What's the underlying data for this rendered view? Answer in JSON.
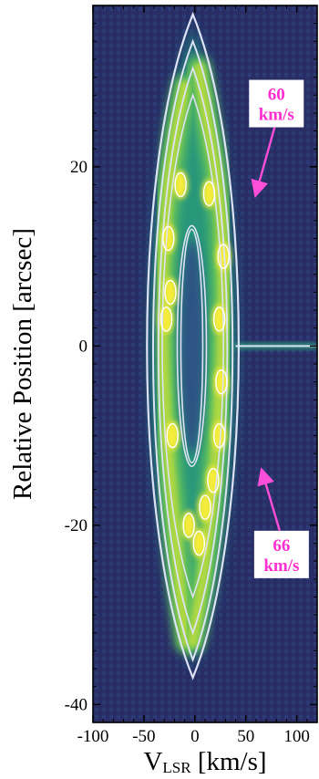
{
  "chart_data": {
    "type": "heatmap",
    "description_kind": "position-velocity diagram with contours",
    "title": "",
    "xlabel": "V",
    "xlabel_subscript": "LSR",
    "xlabel_unit": " [km/s]",
    "ylabel": "Relative Position  [arcsec]",
    "xlim": [
      -100,
      120
    ],
    "ylim": [
      -42,
      38
    ],
    "xticks": [
      -100,
      -50,
      0,
      50,
      100
    ],
    "xtick_labels": [
      "-100",
      "-50",
      "0",
      "50",
      "100"
    ],
    "yticks": [
      -40,
      -20,
      0,
      20
    ],
    "ytick_labels": [
      "-40",
      "-20",
      "0",
      "20"
    ],
    "grid": false,
    "colormap": [
      "#2a1d5c",
      "#2e4d86",
      "#23797f",
      "#2aa07a",
      "#64c35a",
      "#c9df3a",
      "#f5ec3a"
    ],
    "contour_color": "#dde3f4",
    "emission_ridges": [
      {
        "name": "left",
        "points": [
          [
            -8,
            -33
          ],
          [
            -14,
            -28
          ],
          [
            -20,
            -20
          ],
          [
            -26,
            -12
          ],
          [
            -30,
            -4
          ],
          [
            -32,
            4
          ],
          [
            -30,
            12
          ],
          [
            -26,
            18
          ],
          [
            -18,
            24
          ],
          [
            -10,
            29
          ]
        ]
      },
      {
        "name": "right",
        "points": [
          [
            -2,
            -33
          ],
          [
            8,
            -26
          ],
          [
            16,
            -18
          ],
          [
            22,
            -10
          ],
          [
            26,
            -2
          ],
          [
            28,
            6
          ],
          [
            26,
            14
          ],
          [
            20,
            20
          ],
          [
            12,
            25
          ],
          [
            4,
            31
          ]
        ]
      }
    ],
    "bright_knots": [
      {
        "x": -26,
        "y": 12
      },
      {
        "x": -24,
        "y": 6
      },
      {
        "x": -28,
        "y": 3
      },
      {
        "x": -14,
        "y": 18
      },
      {
        "x": 14,
        "y": 17
      },
      {
        "x": 28,
        "y": 10
      },
      {
        "x": 24,
        "y": 3
      },
      {
        "x": 26,
        "y": -4
      },
      {
        "x": 24,
        "y": -10
      },
      {
        "x": 18,
        "y": -15
      },
      {
        "x": -6,
        "y": -20
      },
      {
        "x": 4,
        "y": -22
      },
      {
        "x": 10,
        "y": -18
      },
      {
        "x": -22,
        "y": -10
      }
    ],
    "horizontal_feature": {
      "y": 0,
      "x_from": 40,
      "x_to": 120
    },
    "annotations": [
      {
        "text_lines": [
          "60",
          "km/s"
        ],
        "arrow_from": [
          80,
          24
        ],
        "arrow_to": [
          60,
          17
        ]
      },
      {
        "text_lines": [
          "66",
          "km/s"
        ],
        "arrow_from": [
          85,
          -20
        ],
        "arrow_to": [
          66,
          -14
        ]
      }
    ]
  }
}
